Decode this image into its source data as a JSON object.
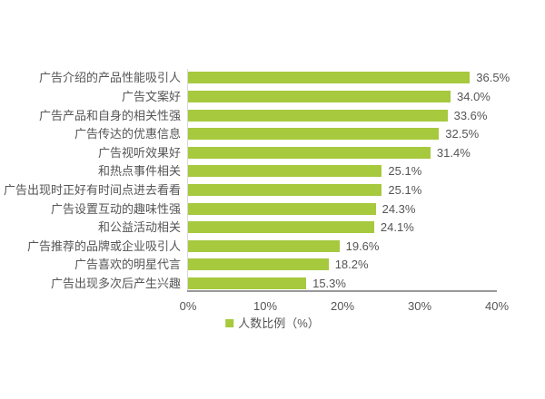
{
  "chart_data": {
    "type": "bar",
    "orientation": "horizontal",
    "categories": [
      "广告介绍的产品性能吸引人",
      "广告文案好",
      "广告产品和自身的相关性强",
      "广告传达的优惠信息",
      "广告视听效果好",
      "和热点事件相关",
      "广告出现时正好有时间点进去看看",
      "广告设置互动的趣味性强",
      "和公益活动相关",
      "广告推荐的品牌或企业吸引人",
      "广告喜欢的明星代言",
      "广告出现多次后产生兴趣"
    ],
    "values": [
      36.5,
      34.0,
      33.6,
      32.5,
      31.4,
      25.1,
      25.1,
      24.3,
      24.1,
      19.6,
      18.2,
      15.3
    ],
    "value_labels": [
      "36.5%",
      "34.0%",
      "33.6%",
      "32.5%",
      "31.4%",
      "25.1%",
      "25.1%",
      "24.3%",
      "24.1%",
      "19.6%",
      "18.2%",
      "15.3%"
    ],
    "title": "",
    "xlabel": "",
    "ylabel": "",
    "xlim": [
      0,
      40
    ],
    "x_ticks": [
      "0%",
      "10%",
      "20%",
      "30%",
      "40%"
    ],
    "grid": false,
    "legend_position": "bottom-center",
    "legend_label": "人数比例（%）",
    "colors": {
      "bar": "#a6c93e",
      "legend_swatch": "#a6c93e",
      "axis_line": "#999999",
      "y_axis_line": "#d9d9d9",
      "text": "#555555"
    }
  }
}
